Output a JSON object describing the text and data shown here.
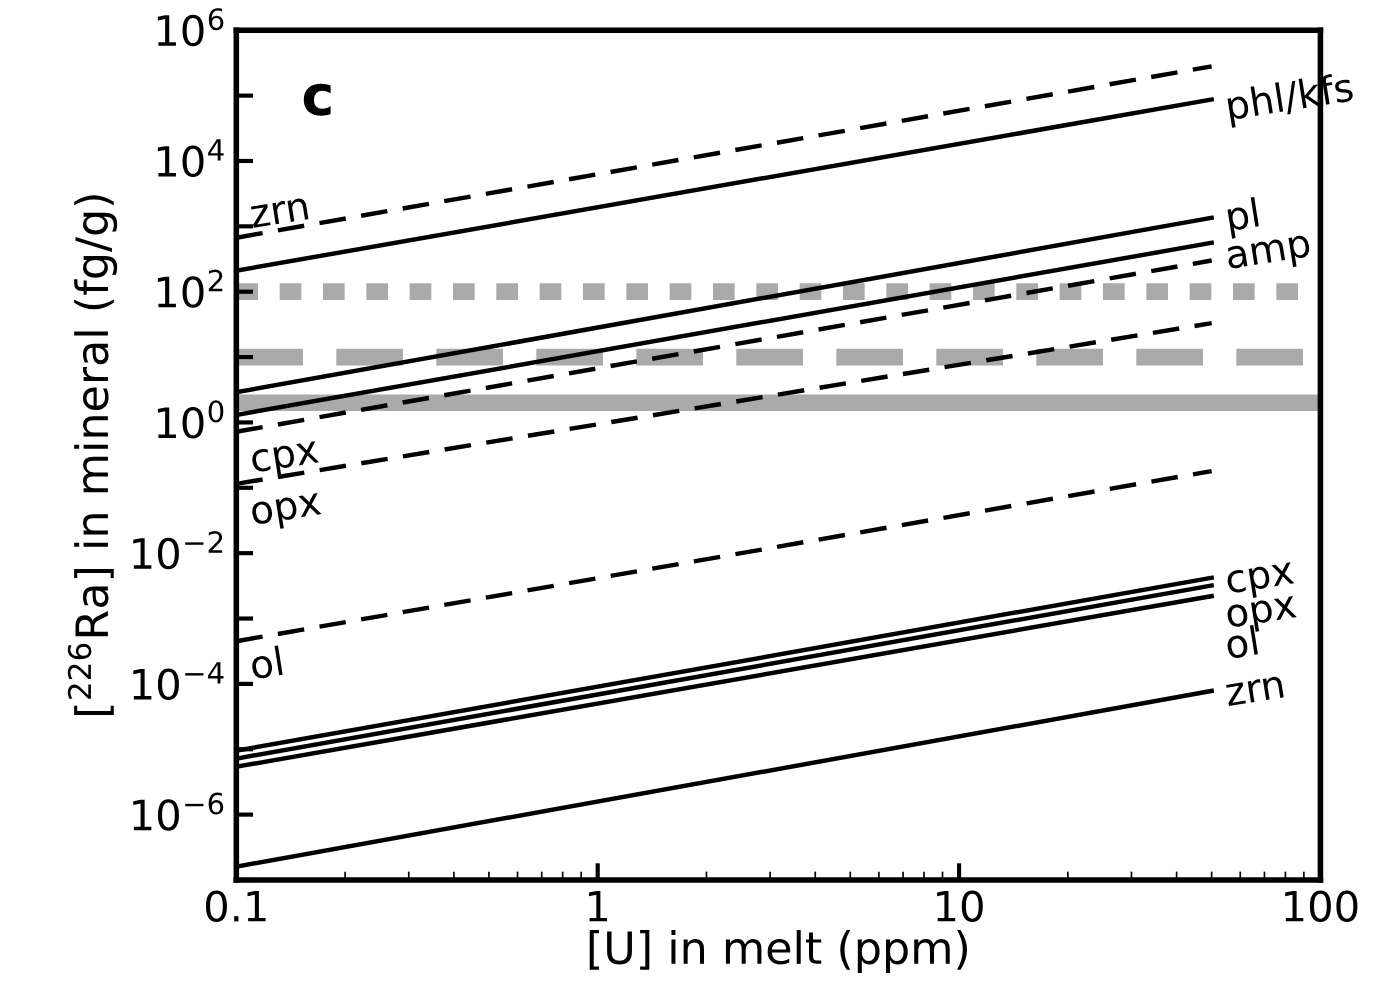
{
  "chart_data": {
    "type": "line",
    "xlabel": "[U] in melt (ppm)",
    "ylabel": "[$^{226}$Ra] in mineral (fg/g)",
    "log": "xy",
    "grid": false,
    "legend": false,
    "xlim": [
      0.1,
      100
    ],
    "xticks": [
      0.1,
      1,
      10,
      100
    ],
    "ylim": [
      1e-07,
      1000000
    ],
    "yticks": [
      {
        "value": 1e-07,
        "label": null
      },
      {
        "value": 1e-06,
        "label": "10$^{−6}$"
      },
      {
        "value": 1e-05,
        "label": null
      },
      {
        "value": 0.0001,
        "label": "10$^{−4}$"
      },
      {
        "value": 0.001,
        "label": null
      },
      {
        "value": 0.01,
        "label": "10$^{−2}$"
      },
      {
        "value": 0.1,
        "label": null
      },
      {
        "value": 1,
        "label": "10$^{0}$"
      },
      {
        "value": 10,
        "label": null
      },
      {
        "value": 100,
        "label": "10$^{2}$"
      },
      {
        "value": 1000,
        "label": null
      },
      {
        "value": 10000,
        "label": "10$^{4}$"
      },
      {
        "value": 100000,
        "label": null
      },
      {
        "value": 1000000,
        "label": "10$^{6}$"
      }
    ],
    "x": [
      0.1,
      50
    ],
    "series": [
      {
        "name": "zrn",
        "color": "#000000",
        "line_style": "dashed",
        "values": [
          670,
          280000
        ]
      },
      {
        "name": "phl/kfs",
        "color": "#000000",
        "line_style": "solid",
        "values": [
          210,
          87000
        ]
      },
      {
        "name": "pl",
        "color": "#000000",
        "line_style": "solid",
        "values": [
          2.9,
          1350
        ]
      },
      {
        "name": "amp",
        "color": "#000000",
        "line_style": "solid",
        "values": [
          1.3,
          560
        ]
      },
      {
        "name": "cpx",
        "color": "#000000",
        "line_style": "dashed",
        "values": [
          0.72,
          300
        ]
      },
      {
        "name": "opx",
        "color": "#000000",
        "line_style": "dashed",
        "values": [
          0.115,
          33
        ]
      },
      {
        "name": "ol",
        "color": "#000000",
        "line_style": "dashed",
        "values": [
          0.00045,
          0.18
        ]
      },
      {
        "name": "cpx",
        "color": "#000000",
        "line_style": "solid",
        "values": [
          9.5e-06,
          0.0042
        ]
      },
      {
        "name": "opx",
        "color": "#000000",
        "line_style": "solid",
        "values": [
          7.2e-06,
          0.0032
        ]
      },
      {
        "name": "ol",
        "color": "#000000",
        "line_style": "solid",
        "values": [
          5.4e-06,
          0.0022
        ]
      },
      {
        "name": "zrn",
        "color": "#000000",
        "line_style": "solid",
        "values": [
          1.6e-07,
          7.8e-05
        ]
      }
    ],
    "ref_lines": [
      {
        "axis": "y",
        "value": 100,
        "color": "#aaaaaa",
        "line_style": "dotted"
      },
      {
        "axis": "y",
        "value": 10,
        "color": "#aaaaaa",
        "line_style": "dashed"
      },
      {
        "axis": "y",
        "value": 2,
        "color": "#aaaaaa",
        "line_style": "solid"
      }
    ],
    "annotations": [
      "c"
    ]
  }
}
